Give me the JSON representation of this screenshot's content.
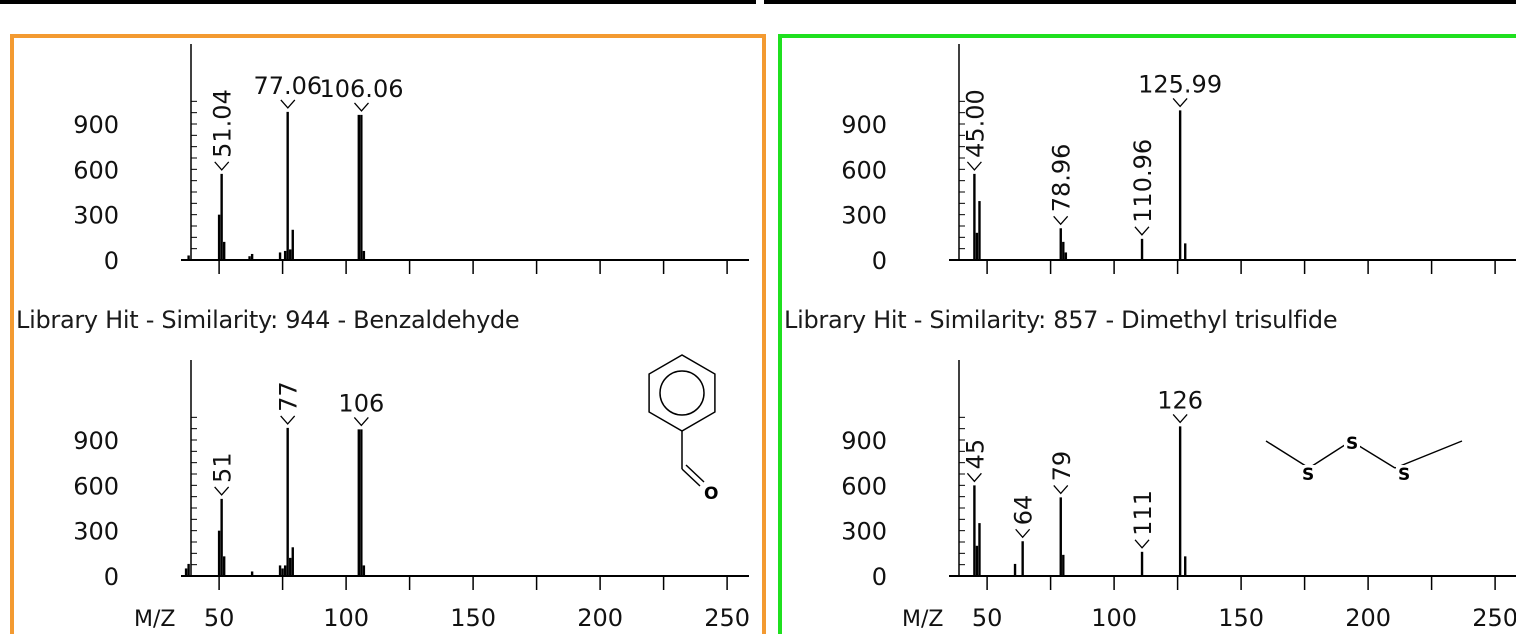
{
  "panels": [
    {
      "border_color": "#f39a31",
      "library_title": "Library Hit - Similarity: 944 - Benzaldehyde",
      "structure_icon": "benzaldehyde-structure",
      "structure_atoms": [
        "O"
      ],
      "chart_data": [
        {
          "type": "bar",
          "title": "",
          "xlabel": "M/Z",
          "xlim": [
            35,
            250
          ],
          "ylim": [
            0,
            1100
          ],
          "yticks": [
            "0",
            "300",
            "600",
            "900"
          ],
          "xticks": [
            "50",
            "100",
            "150",
            "200",
            "250"
          ],
          "peaks": [
            {
              "x": 38,
              "y": 30
            },
            {
              "x": 50,
              "y": 300
            },
            {
              "x": 51,
              "y": 570
            },
            {
              "x": 52,
              "y": 120
            },
            {
              "x": 62,
              "y": 25
            },
            {
              "x": 63,
              "y": 40
            },
            {
              "x": 74,
              "y": 50
            },
            {
              "x": 76,
              "y": 60
            },
            {
              "x": 77,
              "y": 980
            },
            {
              "x": 78,
              "y": 70
            },
            {
              "x": 79,
              "y": 200
            },
            {
              "x": 105,
              "y": 960
            },
            {
              "x": 106,
              "y": 960
            },
            {
              "x": 107,
              "y": 60
            }
          ],
          "labels": [
            {
              "x": 51.04,
              "y": 570,
              "text": "51.04",
              "rotate": true
            },
            {
              "x": 77.06,
              "y": 980,
              "text": "77.06",
              "rotate": false
            },
            {
              "x": 106.06,
              "y": 960,
              "text": "106.06",
              "rotate": false
            }
          ]
        },
        {
          "type": "bar",
          "title": "",
          "xlabel": "M/Z",
          "xlim": [
            35,
            250
          ],
          "ylim": [
            0,
            1100
          ],
          "yticks": [
            "0",
            "300",
            "600",
            "900"
          ],
          "xticks": [
            "50",
            "100",
            "150",
            "200",
            "250"
          ],
          "peaks": [
            {
              "x": 37,
              "y": 50
            },
            {
              "x": 38,
              "y": 80
            },
            {
              "x": 50,
              "y": 300
            },
            {
              "x": 51,
              "y": 510
            },
            {
              "x": 52,
              "y": 130
            },
            {
              "x": 63,
              "y": 30
            },
            {
              "x": 74,
              "y": 70
            },
            {
              "x": 75,
              "y": 50
            },
            {
              "x": 76,
              "y": 70
            },
            {
              "x": 77,
              "y": 980
            },
            {
              "x": 78,
              "y": 120
            },
            {
              "x": 79,
              "y": 190
            },
            {
              "x": 105,
              "y": 970
            },
            {
              "x": 106,
              "y": 970
            },
            {
              "x": 107,
              "y": 70
            }
          ],
          "labels": [
            {
              "x": 51,
              "y": 510,
              "text": "51",
              "rotate": true
            },
            {
              "x": 77,
              "y": 980,
              "text": "77",
              "rotate": true
            },
            {
              "x": 106,
              "y": 970,
              "text": "106",
              "rotate": false
            }
          ]
        }
      ]
    },
    {
      "border_color": "#1fe01f",
      "library_title": "Library Hit - Similarity: 857 - Dimethyl trisulfide",
      "structure_icon": "dimethyl-trisulfide-structure",
      "structure_atoms": [
        "S",
        "S",
        "S"
      ],
      "chart_data": [
        {
          "type": "bar",
          "title": "",
          "xlabel": "M/Z",
          "xlim": [
            35,
            250
          ],
          "ylim": [
            0,
            1100
          ],
          "yticks": [
            "0",
            "300",
            "600",
            "900"
          ],
          "xticks": [
            "50",
            "100",
            "150",
            "200",
            "250"
          ],
          "peaks": [
            {
              "x": 45,
              "y": 570
            },
            {
              "x": 46,
              "y": 180
            },
            {
              "x": 47,
              "y": 390
            },
            {
              "x": 79,
              "y": 210
            },
            {
              "x": 80,
              "y": 120
            },
            {
              "x": 81,
              "y": 50
            },
            {
              "x": 111,
              "y": 140
            },
            {
              "x": 126,
              "y": 990
            },
            {
              "x": 128,
              "y": 110
            }
          ],
          "labels": [
            {
              "x": 45.0,
              "y": 570,
              "text": "45.00",
              "rotate": true
            },
            {
              "x": 78.96,
              "y": 210,
              "text": "78.96",
              "rotate": true
            },
            {
              "x": 110.96,
              "y": 140,
              "text": "110.96",
              "rotate": true
            },
            {
              "x": 125.99,
              "y": 990,
              "text": "125.99",
              "rotate": false
            }
          ]
        },
        {
          "type": "bar",
          "title": "",
          "xlabel": "M/Z",
          "xlim": [
            35,
            250
          ],
          "ylim": [
            0,
            1100
          ],
          "yticks": [
            "0",
            "300",
            "600",
            "900"
          ],
          "xticks": [
            "50",
            "100",
            "150",
            "200",
            "250"
          ],
          "peaks": [
            {
              "x": 45,
              "y": 600
            },
            {
              "x": 46,
              "y": 200
            },
            {
              "x": 47,
              "y": 350
            },
            {
              "x": 61,
              "y": 80
            },
            {
              "x": 64,
              "y": 230
            },
            {
              "x": 79,
              "y": 520
            },
            {
              "x": 80,
              "y": 140
            },
            {
              "x": 111,
              "y": 160
            },
            {
              "x": 126,
              "y": 990
            },
            {
              "x": 128,
              "y": 130
            }
          ],
          "labels": [
            {
              "x": 45,
              "y": 600,
              "text": "45",
              "rotate": true
            },
            {
              "x": 64,
              "y": 230,
              "text": "64",
              "rotate": true
            },
            {
              "x": 79,
              "y": 520,
              "text": "79",
              "rotate": true
            },
            {
              "x": 111,
              "y": 160,
              "text": "111",
              "rotate": true
            },
            {
              "x": 126,
              "y": 990,
              "text": "126",
              "rotate": false
            }
          ]
        }
      ]
    }
  ]
}
